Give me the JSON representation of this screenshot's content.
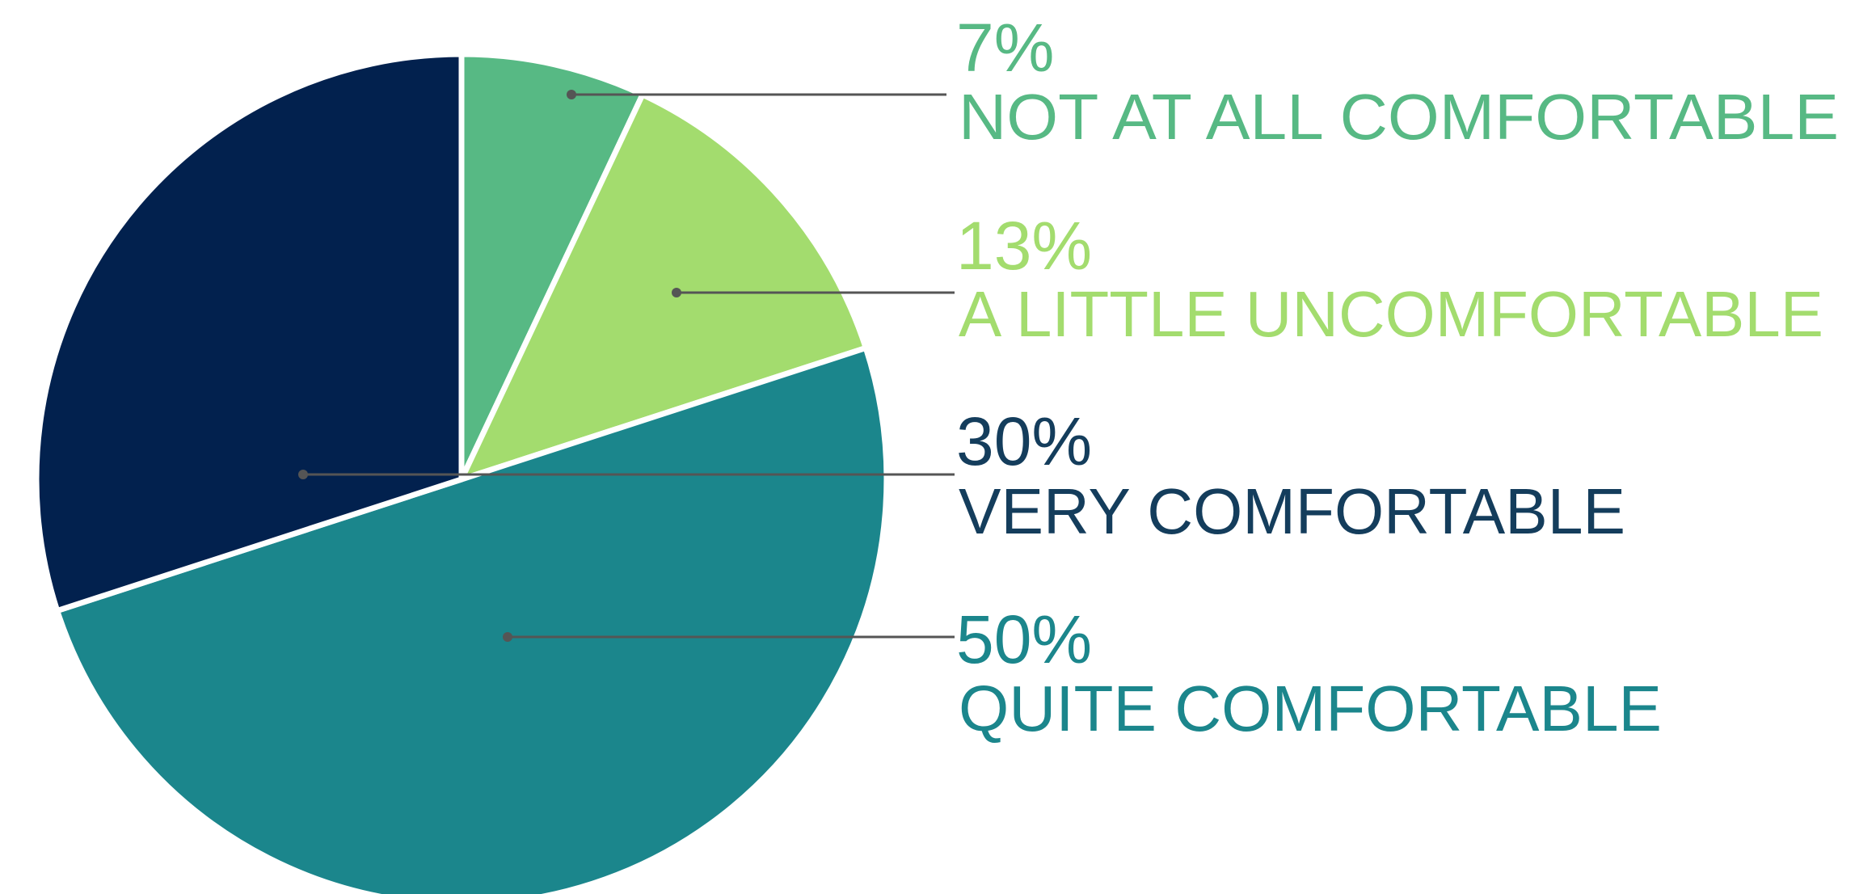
{
  "chart_data": {
    "type": "pie",
    "categories": [
      "NOT AT ALL COMFORTABLE",
      "A LITTLE UNCOMFORTABLE",
      "QUITE COMFORTABLE",
      "VERY COMFORTABLE"
    ],
    "values": [
      7,
      13,
      50,
      30
    ],
    "value_labels": [
      "7%",
      "13%",
      "50%",
      "30%"
    ],
    "colors": [
      "#57b984",
      "#a3dc6e",
      "#1b868c",
      "#02214e"
    ]
  }
}
